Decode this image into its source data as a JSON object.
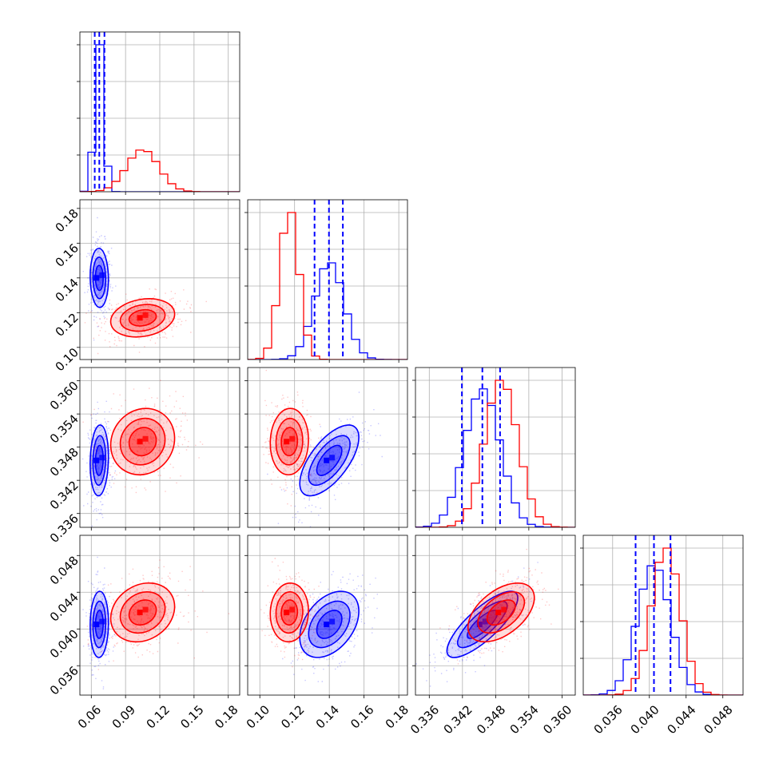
{
  "chart_data": {
    "type": "corner",
    "grid": true,
    "colors": {
      "series_a": "#0000ff",
      "series_b": "#ff0000",
      "grid": "#b0b0b0",
      "axis": "#000000"
    },
    "parameters": [
      {
        "ticks": [
          0.06,
          0.09,
          0.12,
          0.15,
          0.18
        ],
        "tick_labels": [
          "0.06",
          "0.09",
          "0.12",
          "0.15",
          "0.18"
        ],
        "range": [
          0.05,
          0.19
        ]
      },
      {
        "ticks": [
          0.1,
          0.12,
          0.14,
          0.16,
          0.18
        ],
        "tick_labels": [
          "0.10",
          "0.12",
          "0.14",
          "0.16",
          "0.18"
        ],
        "range": [
          0.093,
          0.185
        ]
      },
      {
        "ticks": [
          0.336,
          0.342,
          0.348,
          0.354,
          0.36
        ],
        "tick_labels": [
          "0.336",
          "0.342",
          "0.348",
          "0.354",
          "0.360"
        ],
        "range": [
          0.3335,
          0.3624
        ]
      },
      {
        "ticks": [
          0.036,
          0.04,
          0.044,
          0.048
        ],
        "tick_labels": [
          "0.036",
          "0.040",
          "0.044",
          "0.048"
        ],
        "range": [
          0.0328,
          0.0502
        ]
      }
    ],
    "series": [
      {
        "color": "#0000ff",
        "means": [
          0.067,
          0.14,
          0.3456,
          0.0405
        ],
        "sigmas": [
          0.004,
          0.0085,
          0.0032,
          0.0018
        ],
        "quantile_lines": [
          [
            0.063,
            0.067,
            0.0715
          ],
          [
            0.1315,
            0.1398,
            0.1478
          ],
          [
            0.3419,
            0.3456,
            0.3488
          ],
          [
            0.0385,
            0.0405,
            0.0423
          ]
        ]
      },
      {
        "color": "#ff0000",
        "means": [
          0.105,
          0.117,
          0.349,
          0.0418
        ],
        "sigmas": [
          0.014,
          0.0055,
          0.003,
          0.0016
        ]
      }
    ],
    "correlations": [
      {
        "pair": [
          1,
          0
        ],
        "blue": -0.05,
        "red": 0.2
      },
      {
        "pair": [
          2,
          0
        ],
        "blue": 0.1,
        "red": 0.1
      },
      {
        "pair": [
          2,
          1
        ],
        "blue": 0.65,
        "red": 0.05
      },
      {
        "pair": [
          3,
          0
        ],
        "blue": 0.05,
        "red": 0.2
      },
      {
        "pair": [
          3,
          1
        ],
        "blue": 0.4,
        "red": 0.05
      },
      {
        "pair": [
          3,
          2
        ],
        "blue": 0.8,
        "red": 0.5
      }
    ]
  }
}
